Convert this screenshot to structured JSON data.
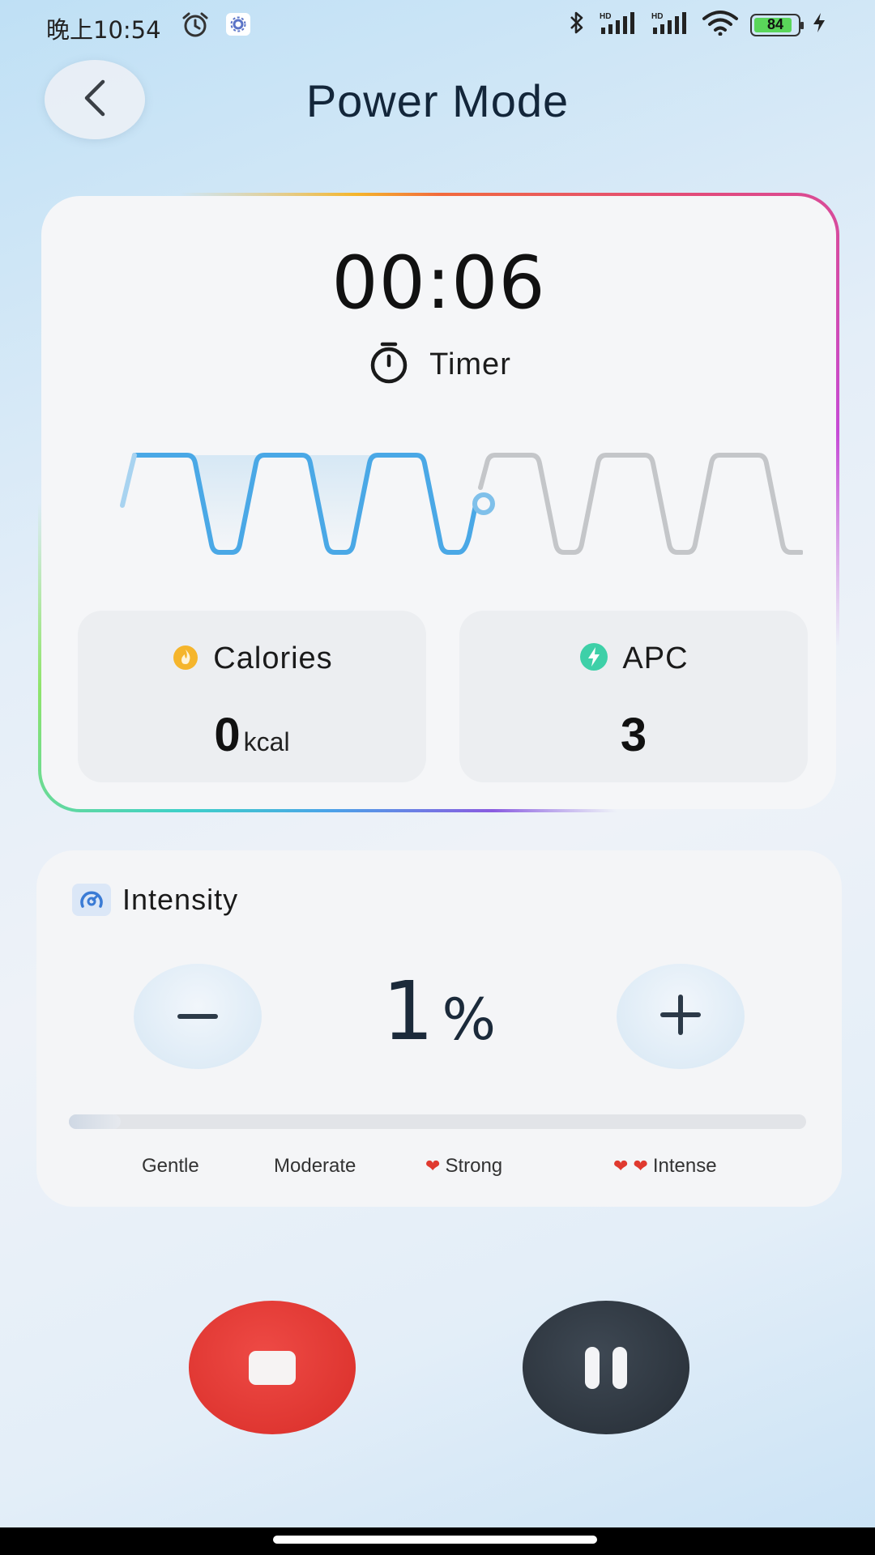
{
  "status_bar": {
    "time": "晚上10:54",
    "battery": "84"
  },
  "header": {
    "title": "Power Mode"
  },
  "session": {
    "timer_value": "00:06",
    "timer_label": "Timer",
    "calories_label": "Calories",
    "calories_value": "0",
    "calories_unit": "kcal",
    "apc_label": "APC",
    "apc_value": "3"
  },
  "intensity": {
    "title": "Intensity",
    "value": "1",
    "unit": "%",
    "level_fraction": 0.01,
    "levels": [
      "Gentle",
      "Moderate",
      "Strong",
      "Intense"
    ]
  },
  "colors": {
    "wave_active": "#4aa8e6",
    "wave_inactive": "#c4c6c9",
    "stop_button": "#df3631",
    "pause_button": "#2c343d",
    "calories_icon": "#f5b52c",
    "apc_icon": "#3ed0a8",
    "heart": "#e03a2f"
  },
  "icons": {
    "back": "chevron-left-icon",
    "timer": "stopwatch-icon",
    "calories": "flame-icon",
    "apc": "lightning-icon",
    "intensity": "gauge-icon",
    "minus": "minus-icon",
    "plus": "plus-icon",
    "stop": "stop-icon",
    "pause": "pause-icon"
  }
}
